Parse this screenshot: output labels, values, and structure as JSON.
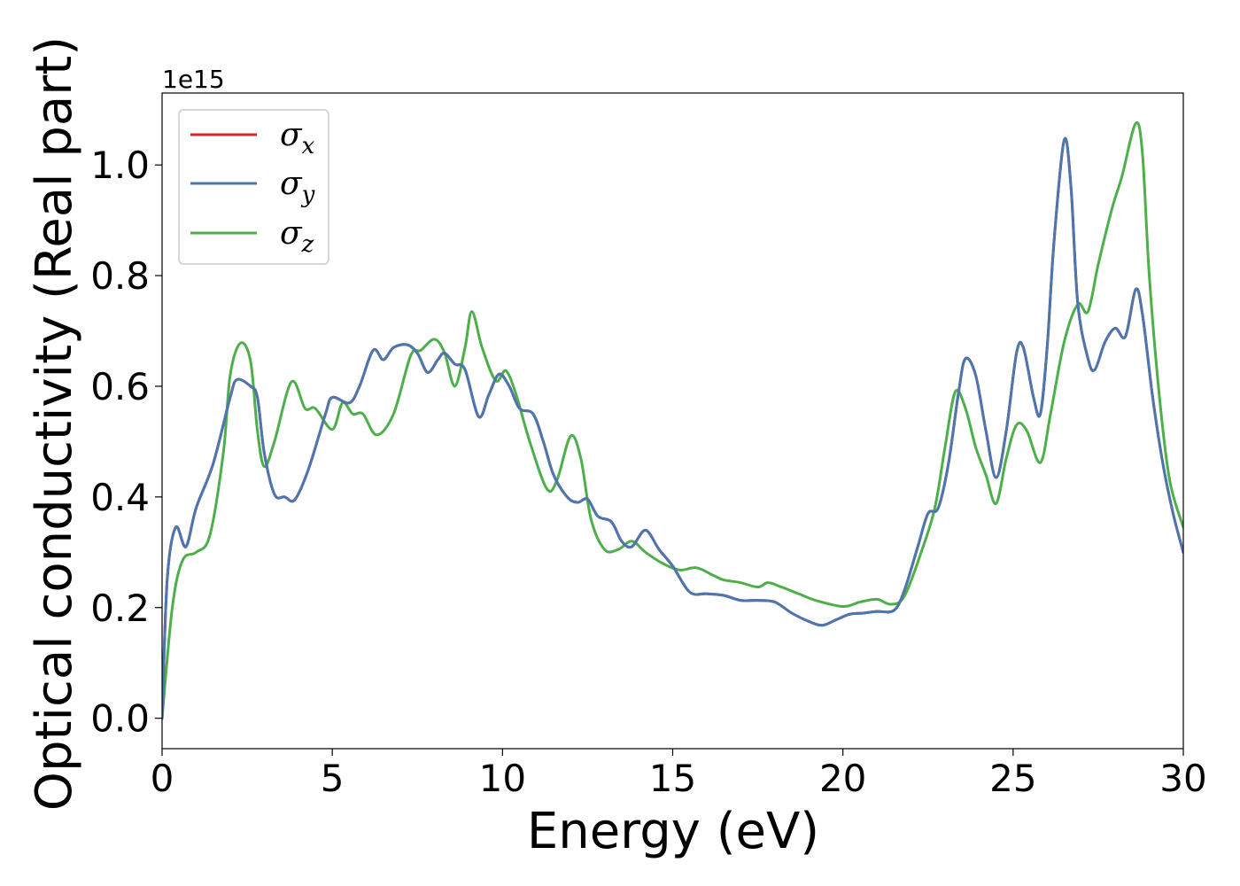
{
  "chart_data": {
    "type": "line",
    "xlabel": "Energy (eV)",
    "ylabel": "Optical conductivity (Real part)",
    "y_offset_label": "1e15",
    "xlim": [
      0,
      30
    ],
    "ylim": [
      -0.055,
      1.13
    ],
    "x_ticks": [
      0,
      5,
      10,
      15,
      20,
      25,
      30
    ],
    "x_tick_labels": [
      "0",
      "5",
      "10",
      "15",
      "20",
      "25",
      "30"
    ],
    "y_ticks": [
      0.0,
      0.2,
      0.4,
      0.6,
      0.8,
      1.0
    ],
    "y_tick_labels": [
      "0.0",
      "0.2",
      "0.4",
      "0.6",
      "0.8",
      "1.0"
    ],
    "grid": false,
    "legend_position": "top-left",
    "series": [
      {
        "name": "σx",
        "legend_base": "σ",
        "legend_sub": "x",
        "color": "#d62728",
        "points": [
          [
            0,
            0
          ],
          [
            0.15,
            0.25
          ],
          [
            0.4,
            0.345
          ],
          [
            0.7,
            0.31
          ],
          [
            1.0,
            0.38
          ],
          [
            1.5,
            0.46
          ],
          [
            2.0,
            0.58
          ],
          [
            2.2,
            0.612
          ],
          [
            2.6,
            0.6
          ],
          [
            2.8,
            0.58
          ],
          [
            3.0,
            0.48
          ],
          [
            3.3,
            0.405
          ],
          [
            3.6,
            0.4
          ],
          [
            3.9,
            0.395
          ],
          [
            4.3,
            0.45
          ],
          [
            4.8,
            0.55
          ],
          [
            5.0,
            0.58
          ],
          [
            5.5,
            0.57
          ],
          [
            5.8,
            0.6
          ],
          [
            6.2,
            0.665
          ],
          [
            6.5,
            0.648
          ],
          [
            6.8,
            0.67
          ],
          [
            7.2,
            0.675
          ],
          [
            7.5,
            0.66
          ],
          [
            7.8,
            0.625
          ],
          [
            8.1,
            0.648
          ],
          [
            8.3,
            0.66
          ],
          [
            8.6,
            0.64
          ],
          [
            8.9,
            0.63
          ],
          [
            9.3,
            0.545
          ],
          [
            9.6,
            0.585
          ],
          [
            9.9,
            0.622
          ],
          [
            10.2,
            0.6
          ],
          [
            10.5,
            0.56
          ],
          [
            10.9,
            0.55
          ],
          [
            11.2,
            0.5
          ],
          [
            11.5,
            0.44
          ],
          [
            11.9,
            0.4
          ],
          [
            12.2,
            0.39
          ],
          [
            12.5,
            0.396
          ],
          [
            12.8,
            0.365
          ],
          [
            13.2,
            0.355
          ],
          [
            13.5,
            0.32
          ],
          [
            13.8,
            0.31
          ],
          [
            14.2,
            0.34
          ],
          [
            14.6,
            0.305
          ],
          [
            15.0,
            0.275
          ],
          [
            15.5,
            0.228
          ],
          [
            16.0,
            0.225
          ],
          [
            16.5,
            0.222
          ],
          [
            17.0,
            0.213
          ],
          [
            17.5,
            0.213
          ],
          [
            18.0,
            0.21
          ],
          [
            18.5,
            0.19
          ],
          [
            19.0,
            0.175
          ],
          [
            19.4,
            0.168
          ],
          [
            19.8,
            0.178
          ],
          [
            20.2,
            0.188
          ],
          [
            20.6,
            0.19
          ],
          [
            21.0,
            0.193
          ],
          [
            21.5,
            0.195
          ],
          [
            21.8,
            0.23
          ],
          [
            22.2,
            0.31
          ],
          [
            22.5,
            0.37
          ],
          [
            22.8,
            0.38
          ],
          [
            23.1,
            0.46
          ],
          [
            23.4,
            0.59
          ],
          [
            23.6,
            0.65
          ],
          [
            23.9,
            0.62
          ],
          [
            24.2,
            0.52
          ],
          [
            24.5,
            0.435
          ],
          [
            24.8,
            0.52
          ],
          [
            25.1,
            0.66
          ],
          [
            25.3,
            0.67
          ],
          [
            25.6,
            0.58
          ],
          [
            25.8,
            0.55
          ],
          [
            26.0,
            0.67
          ],
          [
            26.2,
            0.86
          ],
          [
            26.5,
            1.045
          ],
          [
            26.7,
            0.96
          ],
          [
            26.9,
            0.75
          ],
          [
            27.2,
            0.65
          ],
          [
            27.4,
            0.63
          ],
          [
            27.7,
            0.68
          ],
          [
            28.0,
            0.705
          ],
          [
            28.3,
            0.69
          ],
          [
            28.6,
            0.775
          ],
          [
            28.8,
            0.73
          ],
          [
            29.1,
            0.58
          ],
          [
            29.4,
            0.46
          ],
          [
            29.7,
            0.37
          ],
          [
            30,
            0.3
          ]
        ]
      },
      {
        "name": "σy",
        "legend_base": "σ",
        "legend_sub": "y",
        "color": "#4b77b0",
        "points": [
          [
            0,
            0
          ],
          [
            0.15,
            0.25
          ],
          [
            0.4,
            0.345
          ],
          [
            0.7,
            0.31
          ],
          [
            1.0,
            0.38
          ],
          [
            1.5,
            0.46
          ],
          [
            2.0,
            0.58
          ],
          [
            2.2,
            0.612
          ],
          [
            2.6,
            0.6
          ],
          [
            2.8,
            0.58
          ],
          [
            3.0,
            0.48
          ],
          [
            3.3,
            0.405
          ],
          [
            3.6,
            0.4
          ],
          [
            3.9,
            0.395
          ],
          [
            4.3,
            0.45
          ],
          [
            4.8,
            0.55
          ],
          [
            5.0,
            0.58
          ],
          [
            5.5,
            0.57
          ],
          [
            5.8,
            0.6
          ],
          [
            6.2,
            0.665
          ],
          [
            6.5,
            0.648
          ],
          [
            6.8,
            0.67
          ],
          [
            7.2,
            0.675
          ],
          [
            7.5,
            0.66
          ],
          [
            7.8,
            0.625
          ],
          [
            8.1,
            0.648
          ],
          [
            8.3,
            0.66
          ],
          [
            8.6,
            0.64
          ],
          [
            8.9,
            0.63
          ],
          [
            9.3,
            0.545
          ],
          [
            9.6,
            0.585
          ],
          [
            9.9,
            0.622
          ],
          [
            10.2,
            0.6
          ],
          [
            10.5,
            0.56
          ],
          [
            10.9,
            0.55
          ],
          [
            11.2,
            0.5
          ],
          [
            11.5,
            0.44
          ],
          [
            11.9,
            0.4
          ],
          [
            12.2,
            0.39
          ],
          [
            12.5,
            0.396
          ],
          [
            12.8,
            0.365
          ],
          [
            13.2,
            0.355
          ],
          [
            13.5,
            0.32
          ],
          [
            13.8,
            0.31
          ],
          [
            14.2,
            0.34
          ],
          [
            14.6,
            0.305
          ],
          [
            15.0,
            0.275
          ],
          [
            15.5,
            0.228
          ],
          [
            16.0,
            0.225
          ],
          [
            16.5,
            0.222
          ],
          [
            17.0,
            0.213
          ],
          [
            17.5,
            0.213
          ],
          [
            18.0,
            0.21
          ],
          [
            18.5,
            0.19
          ],
          [
            19.0,
            0.175
          ],
          [
            19.4,
            0.168
          ],
          [
            19.8,
            0.178
          ],
          [
            20.2,
            0.188
          ],
          [
            20.6,
            0.19
          ],
          [
            21.0,
            0.193
          ],
          [
            21.5,
            0.195
          ],
          [
            21.8,
            0.23
          ],
          [
            22.2,
            0.31
          ],
          [
            22.5,
            0.37
          ],
          [
            22.8,
            0.38
          ],
          [
            23.1,
            0.46
          ],
          [
            23.4,
            0.59
          ],
          [
            23.6,
            0.65
          ],
          [
            23.9,
            0.62
          ],
          [
            24.2,
            0.52
          ],
          [
            24.5,
            0.435
          ],
          [
            24.8,
            0.52
          ],
          [
            25.1,
            0.66
          ],
          [
            25.3,
            0.67
          ],
          [
            25.6,
            0.58
          ],
          [
            25.8,
            0.55
          ],
          [
            26.0,
            0.67
          ],
          [
            26.2,
            0.86
          ],
          [
            26.5,
            1.045
          ],
          [
            26.7,
            0.96
          ],
          [
            26.9,
            0.75
          ],
          [
            27.2,
            0.65
          ],
          [
            27.4,
            0.63
          ],
          [
            27.7,
            0.68
          ],
          [
            28.0,
            0.705
          ],
          [
            28.3,
            0.69
          ],
          [
            28.6,
            0.775
          ],
          [
            28.8,
            0.73
          ],
          [
            29.1,
            0.58
          ],
          [
            29.4,
            0.46
          ],
          [
            29.7,
            0.37
          ],
          [
            30,
            0.3
          ]
        ]
      },
      {
        "name": "σz",
        "legend_base": "σ",
        "legend_sub": "z",
        "color": "#4daf4a",
        "points": [
          [
            0,
            0
          ],
          [
            0.3,
            0.2
          ],
          [
            0.6,
            0.285
          ],
          [
            1.0,
            0.3
          ],
          [
            1.4,
            0.33
          ],
          [
            1.8,
            0.48
          ],
          [
            2.0,
            0.62
          ],
          [
            2.3,
            0.678
          ],
          [
            2.6,
            0.645
          ],
          [
            2.8,
            0.52
          ],
          [
            3.0,
            0.455
          ],
          [
            3.3,
            0.5
          ],
          [
            3.8,
            0.608
          ],
          [
            4.2,
            0.56
          ],
          [
            4.5,
            0.56
          ],
          [
            5.0,
            0.522
          ],
          [
            5.3,
            0.57
          ],
          [
            5.6,
            0.55
          ],
          [
            5.9,
            0.55
          ],
          [
            6.3,
            0.512
          ],
          [
            6.8,
            0.55
          ],
          [
            7.3,
            0.655
          ],
          [
            7.6,
            0.665
          ],
          [
            8.0,
            0.685
          ],
          [
            8.3,
            0.66
          ],
          [
            8.6,
            0.6
          ],
          [
            8.9,
            0.67
          ],
          [
            9.1,
            0.735
          ],
          [
            9.4,
            0.67
          ],
          [
            9.8,
            0.61
          ],
          [
            10.1,
            0.628
          ],
          [
            10.4,
            0.585
          ],
          [
            10.8,
            0.5
          ],
          [
            11.3,
            0.415
          ],
          [
            11.6,
            0.43
          ],
          [
            12.0,
            0.51
          ],
          [
            12.3,
            0.47
          ],
          [
            12.6,
            0.36
          ],
          [
            13.0,
            0.305
          ],
          [
            13.4,
            0.305
          ],
          [
            13.8,
            0.32
          ],
          [
            14.2,
            0.3
          ],
          [
            14.7,
            0.28
          ],
          [
            15.2,
            0.268
          ],
          [
            15.7,
            0.272
          ],
          [
            16.2,
            0.258
          ],
          [
            16.5,
            0.25
          ],
          [
            17.0,
            0.245
          ],
          [
            17.5,
            0.237
          ],
          [
            17.8,
            0.245
          ],
          [
            18.2,
            0.237
          ],
          [
            18.7,
            0.225
          ],
          [
            19.2,
            0.213
          ],
          [
            20.0,
            0.202
          ],
          [
            20.5,
            0.21
          ],
          [
            21.0,
            0.215
          ],
          [
            21.4,
            0.206
          ],
          [
            21.8,
            0.22
          ],
          [
            22.3,
            0.3
          ],
          [
            22.7,
            0.38
          ],
          [
            23.0,
            0.49
          ],
          [
            23.3,
            0.59
          ],
          [
            23.6,
            0.56
          ],
          [
            23.9,
            0.49
          ],
          [
            24.2,
            0.44
          ],
          [
            24.5,
            0.388
          ],
          [
            24.8,
            0.47
          ],
          [
            25.1,
            0.53
          ],
          [
            25.4,
            0.52
          ],
          [
            25.8,
            0.462
          ],
          [
            26.1,
            0.55
          ],
          [
            26.5,
            0.68
          ],
          [
            26.9,
            0.748
          ],
          [
            27.2,
            0.735
          ],
          [
            27.5,
            0.82
          ],
          [
            27.9,
            0.92
          ],
          [
            28.2,
            0.98
          ],
          [
            28.6,
            1.075
          ],
          [
            28.8,
            1.02
          ],
          [
            29.0,
            0.8
          ],
          [
            29.3,
            0.58
          ],
          [
            29.6,
            0.43
          ],
          [
            30,
            0.345
          ]
        ]
      }
    ]
  }
}
